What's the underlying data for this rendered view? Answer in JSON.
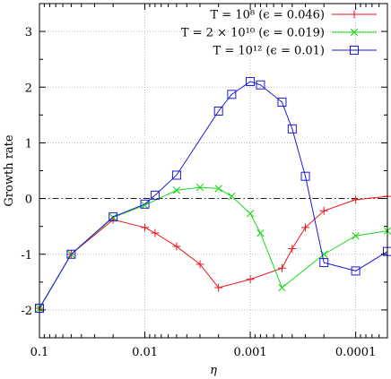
{
  "chart_data": {
    "type": "line",
    "xlabel": "η",
    "ylabel": "Growth rate",
    "x_scale": "log",
    "x_reversed": true,
    "xlim": [
      0.1,
      5e-05
    ],
    "ylim": [
      -2.5,
      3.5
    ],
    "x_ticks": [
      0.1,
      0.01,
      0.001,
      0.0001
    ],
    "x_tick_labels": [
      "0.1",
      "0.01",
      "0.001",
      "0.0001"
    ],
    "y_ticks": [
      -2,
      -1,
      0,
      1,
      2,
      3
    ],
    "y_tick_labels": [
      "-2",
      "-1",
      "0",
      "1",
      "2",
      "3"
    ],
    "grid": true,
    "reference_line": {
      "y": 0,
      "style": "dash-dot"
    },
    "legend_position": "top-right",
    "series": [
      {
        "name": "T = 10⁸ (ϵ = 0.046)",
        "color": "#e8171b",
        "marker": "plus",
        "x": [
          0.1,
          0.05,
          0.02,
          0.01,
          0.008,
          0.005,
          0.003,
          0.002,
          0.001,
          0.0005,
          0.0004,
          0.0003,
          0.0002,
          0.0001,
          5e-05
        ],
        "y": [
          -1.97,
          -1.0,
          -0.38,
          -0.52,
          -0.62,
          -0.86,
          -1.18,
          -1.6,
          -1.45,
          -1.25,
          -0.9,
          -0.52,
          -0.22,
          -0.02,
          0.04
        ]
      },
      {
        "name": "T = 2 × 10¹⁰ (ϵ = 0.019)",
        "color": "#1ed81e",
        "marker": "cross",
        "x": [
          0.1,
          0.05,
          0.02,
          0.01,
          0.005,
          0.003,
          0.002,
          0.0015,
          0.001,
          0.0008,
          0.0005,
          0.0002,
          0.0001,
          5e-05
        ],
        "y": [
          -1.97,
          -1.0,
          -0.34,
          -0.12,
          0.15,
          0.2,
          0.18,
          0.04,
          -0.27,
          -0.62,
          -1.6,
          -1.0,
          -0.67,
          -0.58
        ]
      },
      {
        "name": "T = 10¹² (ϵ = 0.01)",
        "color": "#1a1ad8",
        "marker": "square",
        "x": [
          0.1,
          0.05,
          0.02,
          0.01,
          0.008,
          0.005,
          0.002,
          0.0015,
          0.001,
          0.0008,
          0.0005,
          0.0004,
          0.0003,
          0.0002,
          0.0001,
          5e-05
        ],
        "y": [
          -1.97,
          -1.0,
          -0.33,
          -0.1,
          0.06,
          0.42,
          1.57,
          1.87,
          2.1,
          2.04,
          1.73,
          1.25,
          0.4,
          -1.15,
          -1.3,
          -0.95
        ]
      }
    ]
  }
}
